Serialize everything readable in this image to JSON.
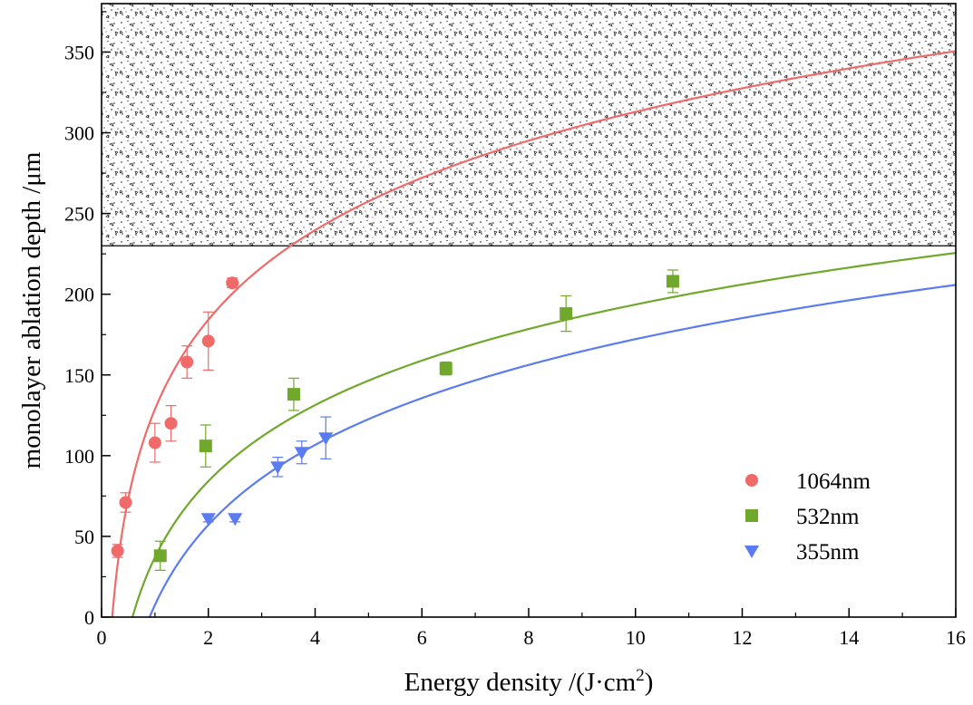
{
  "chart_data": {
    "type": "scatter",
    "xlabel": "Energy density /(J·cm",
    "xlabel_sup": "2",
    "xlabel_end": ")",
    "ylabel": "monolayer ablation depth /μm",
    "xlim": [
      0,
      16
    ],
    "ylim": [
      0,
      380
    ],
    "xticks": [
      0,
      2,
      4,
      6,
      8,
      10,
      12,
      14,
      16
    ],
    "yticks": [
      0,
      50,
      100,
      150,
      200,
      250,
      300,
      350
    ],
    "shaded_region": {
      "from_y": 230,
      "to_y": 380,
      "pattern": "stipple"
    },
    "legend_position": "lower-right",
    "series": [
      {
        "name": "1064nm",
        "color": "#f06a6a",
        "marker": "circle",
        "x": [
          0.3,
          0.45,
          1.0,
          1.3,
          1.6,
          2.0,
          2.45
        ],
        "y": [
          41,
          71,
          108,
          120,
          158,
          171,
          207
        ],
        "yerr": [
          4,
          6,
          12,
          11,
          10,
          18,
          3
        ],
        "fit": {
          "a": 80.0,
          "threshold": 0.2
        }
      },
      {
        "name": "532nm",
        "color": "#6fa82a",
        "marker": "square",
        "x": [
          1.1,
          1.95,
          3.6,
          6.45,
          8.7,
          10.7
        ],
        "y": [
          38,
          106,
          138,
          154,
          188,
          208
        ],
        "yerr": [
          9,
          13,
          10,
          4,
          11,
          7
        ],
        "fit": {
          "a": 68.0,
          "threshold": 0.58
        }
      },
      {
        "name": "355nm",
        "color": "#5b7cf0",
        "marker": "triangle-down",
        "x": [
          2.0,
          2.5,
          3.3,
          3.75,
          4.2
        ],
        "y": [
          61,
          61,
          93,
          102,
          111
        ],
        "yerr": [
          2,
          2,
          6,
          7,
          13
        ],
        "fit": {
          "a": 71.5,
          "threshold": 0.9
        }
      }
    ]
  }
}
